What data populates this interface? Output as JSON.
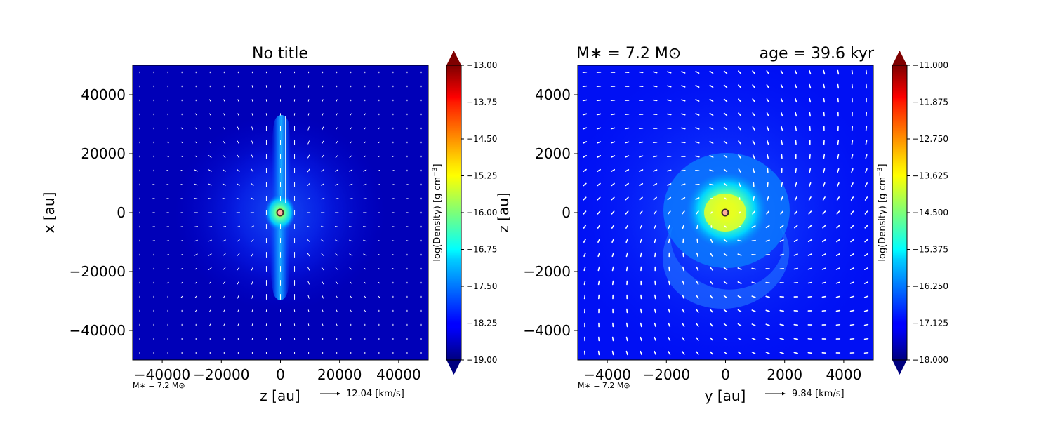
{
  "chart_data": [
    {
      "type": "heatmap",
      "title": "No title",
      "xlabel": "z [au]",
      "ylabel": "x [au]",
      "xlim": [
        -50000,
        50000
      ],
      "ylim": [
        -50000,
        50000
      ],
      "x_ticks": [
        "−40000",
        "−20000",
        "0",
        "20000",
        "40000"
      ],
      "x_tick_values": [
        -40000,
        -20000,
        0,
        20000,
        40000
      ],
      "y_ticks": [
        "−40000",
        "−20000",
        "0",
        "20000",
        "40000"
      ],
      "y_tick_values": [
        -40000,
        -20000,
        0,
        20000,
        40000
      ],
      "colorbar": {
        "label": "log(Density) [g cm$^{-3}$]",
        "label_text": "log(Density) [g cm",
        "label_sup": "−3",
        "label_close": "]",
        "min": -19.0,
        "max": -13.0,
        "ticks": [
          "−19.00",
          "−18.25",
          "−17.50",
          "−16.75",
          "−16.00",
          "−15.25",
          "−14.50",
          "−13.75",
          "−13.00"
        ],
        "colormap": "jet"
      },
      "footer_mass": "M∗ = 7.2 M⊙",
      "velocity_key": "12.04 [km/s]",
      "grid": false,
      "structure": "bipolar outflow along x with dense central source at origin"
    },
    {
      "type": "heatmap",
      "title": "",
      "title_left": "M∗ = 7.2 M⊙",
      "title_right": "age = 39.6 kyr",
      "xlabel": "y [au]",
      "ylabel": "z [au]",
      "xlim": [
        -5000,
        5000
      ],
      "ylim": [
        -5000,
        5000
      ],
      "x_ticks": [
        "−4000",
        "−2000",
        "0",
        "2000",
        "4000"
      ],
      "x_tick_values": [
        -4000,
        -2000,
        0,
        2000,
        4000
      ],
      "y_ticks": [
        "−4000",
        "−2000",
        "0",
        "2000",
        "4000"
      ],
      "y_tick_values": [
        -4000,
        -2000,
        0,
        2000,
        4000
      ],
      "colorbar": {
        "label": "log(Density) [g cm$^{-3}$]",
        "label_text": "log(Density) [g cm",
        "label_sup": "−3",
        "label_close": "]",
        "min": -18.0,
        "max": -11.0,
        "ticks": [
          "−18.000",
          "−17.125",
          "−16.250",
          "−15.375",
          "−14.500",
          "−13.625",
          "−12.750",
          "−11.875",
          "−11.000"
        ],
        "colormap": "jet"
      },
      "footer_mass": "M∗ = 7.2 M⊙",
      "velocity_key": "9.84 [km/s]",
      "grid": false,
      "structure": "rotating disk with dense core at origin"
    }
  ]
}
